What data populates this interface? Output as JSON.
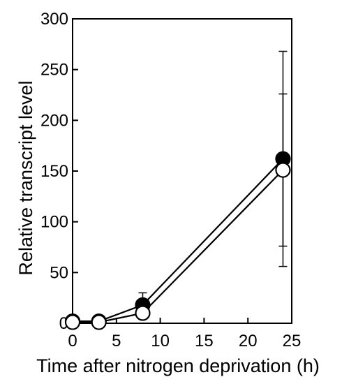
{
  "chart_data": {
    "type": "line",
    "title": "",
    "xlabel": "Time after nitrogen deprivation (h)",
    "ylabel": "Relative transcript level",
    "xlim": [
      0,
      25
    ],
    "ylim": [
      0,
      300
    ],
    "xticks": [
      0,
      5,
      10,
      15,
      20,
      25
    ],
    "yticks": [
      0,
      50,
      100,
      150,
      200,
      250,
      300
    ],
    "xtick_labels": [
      "0",
      "5",
      "10",
      "15",
      "20",
      "25"
    ],
    "ytick_labels": [
      "0",
      "50",
      "100",
      "150",
      "200",
      "250",
      "300"
    ],
    "grid": false,
    "legend": "none",
    "series": [
      {
        "marker": "filled-circle",
        "color": "#000000",
        "x": [
          0,
          3,
          8,
          24
        ],
        "y": [
          2,
          2,
          18,
          162
        ],
        "error": [
          0,
          0,
          12,
          106
        ]
      },
      {
        "marker": "open-circle",
        "color": "#000000",
        "x": [
          0,
          3,
          8,
          24
        ],
        "y": [
          1,
          1,
          10,
          151
        ],
        "error": [
          0,
          0,
          0,
          75
        ]
      }
    ]
  }
}
